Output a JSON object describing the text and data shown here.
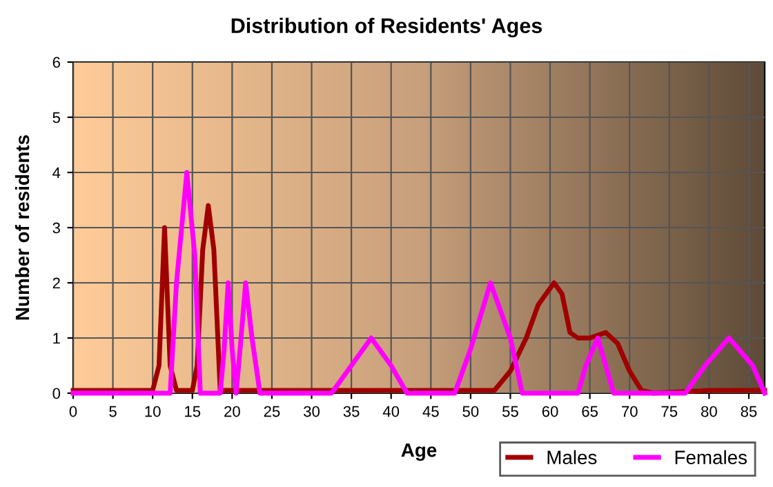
{
  "chart_data": {
    "type": "line",
    "title": "Distribution of Residents' Ages",
    "xlabel": "Age",
    "ylabel": "Number of residents",
    "xlim": [
      0,
      87
    ],
    "ylim": [
      0,
      6
    ],
    "xticks": [
      0,
      5,
      10,
      15,
      20,
      25,
      30,
      35,
      40,
      45,
      50,
      55,
      60,
      65,
      70,
      75,
      80,
      85
    ],
    "yticks": [
      0,
      1,
      2,
      3,
      4,
      5,
      6
    ],
    "grid": true,
    "legend": "bottom right",
    "marker": "none",
    "line_style": "solid",
    "series": [
      {
        "name": "Males",
        "color": "#a00000",
        "x": [
          0,
          10,
          10.8,
          11.5,
          12.2,
          13,
          14,
          15,
          15.6,
          16.3,
          17,
          17.7,
          18.5,
          20,
          30,
          40,
          50,
          53,
          55,
          57,
          58.5,
          60.5,
          61.5,
          62.5,
          63.5,
          65,
          67,
          68.5,
          70,
          71.5,
          73,
          80,
          87
        ],
        "values": [
          0.05,
          0.05,
          0.5,
          3.0,
          0.5,
          0.05,
          0.05,
          0.05,
          0.5,
          2.6,
          3.4,
          2.6,
          0.05,
          0.05,
          0.05,
          0.05,
          0.05,
          0.05,
          0.4,
          1.0,
          1.6,
          2.0,
          1.8,
          1.1,
          1.0,
          1.0,
          1.1,
          0.9,
          0.4,
          0.05,
          0.0,
          0.05,
          0.05
        ]
      },
      {
        "name": "Females",
        "color": "#ff00ff",
        "x": [
          0,
          10,
          12.2,
          13,
          14.3,
          15.3,
          16,
          18.5,
          19,
          19.5,
          20,
          20.5,
          21,
          21.7,
          22.5,
          23.5,
          30,
          32.5,
          35,
          37.5,
          40,
          42,
          48,
          50,
          52.5,
          55,
          56.5,
          63.5,
          64.5,
          66,
          67,
          68,
          77,
          79.5,
          82.5,
          85.5,
          87
        ],
        "values": [
          0,
          0,
          0,
          2.0,
          4.0,
          2.5,
          0,
          0,
          0.8,
          2.0,
          0.8,
          0,
          0.8,
          2.0,
          1.0,
          0,
          0,
          0,
          0.5,
          1.0,
          0.5,
          0,
          0,
          0.8,
          2.0,
          1.0,
          0,
          0,
          0.5,
          1.0,
          0.5,
          0,
          0,
          0.5,
          1.0,
          0.5,
          0
        ]
      }
    ]
  }
}
